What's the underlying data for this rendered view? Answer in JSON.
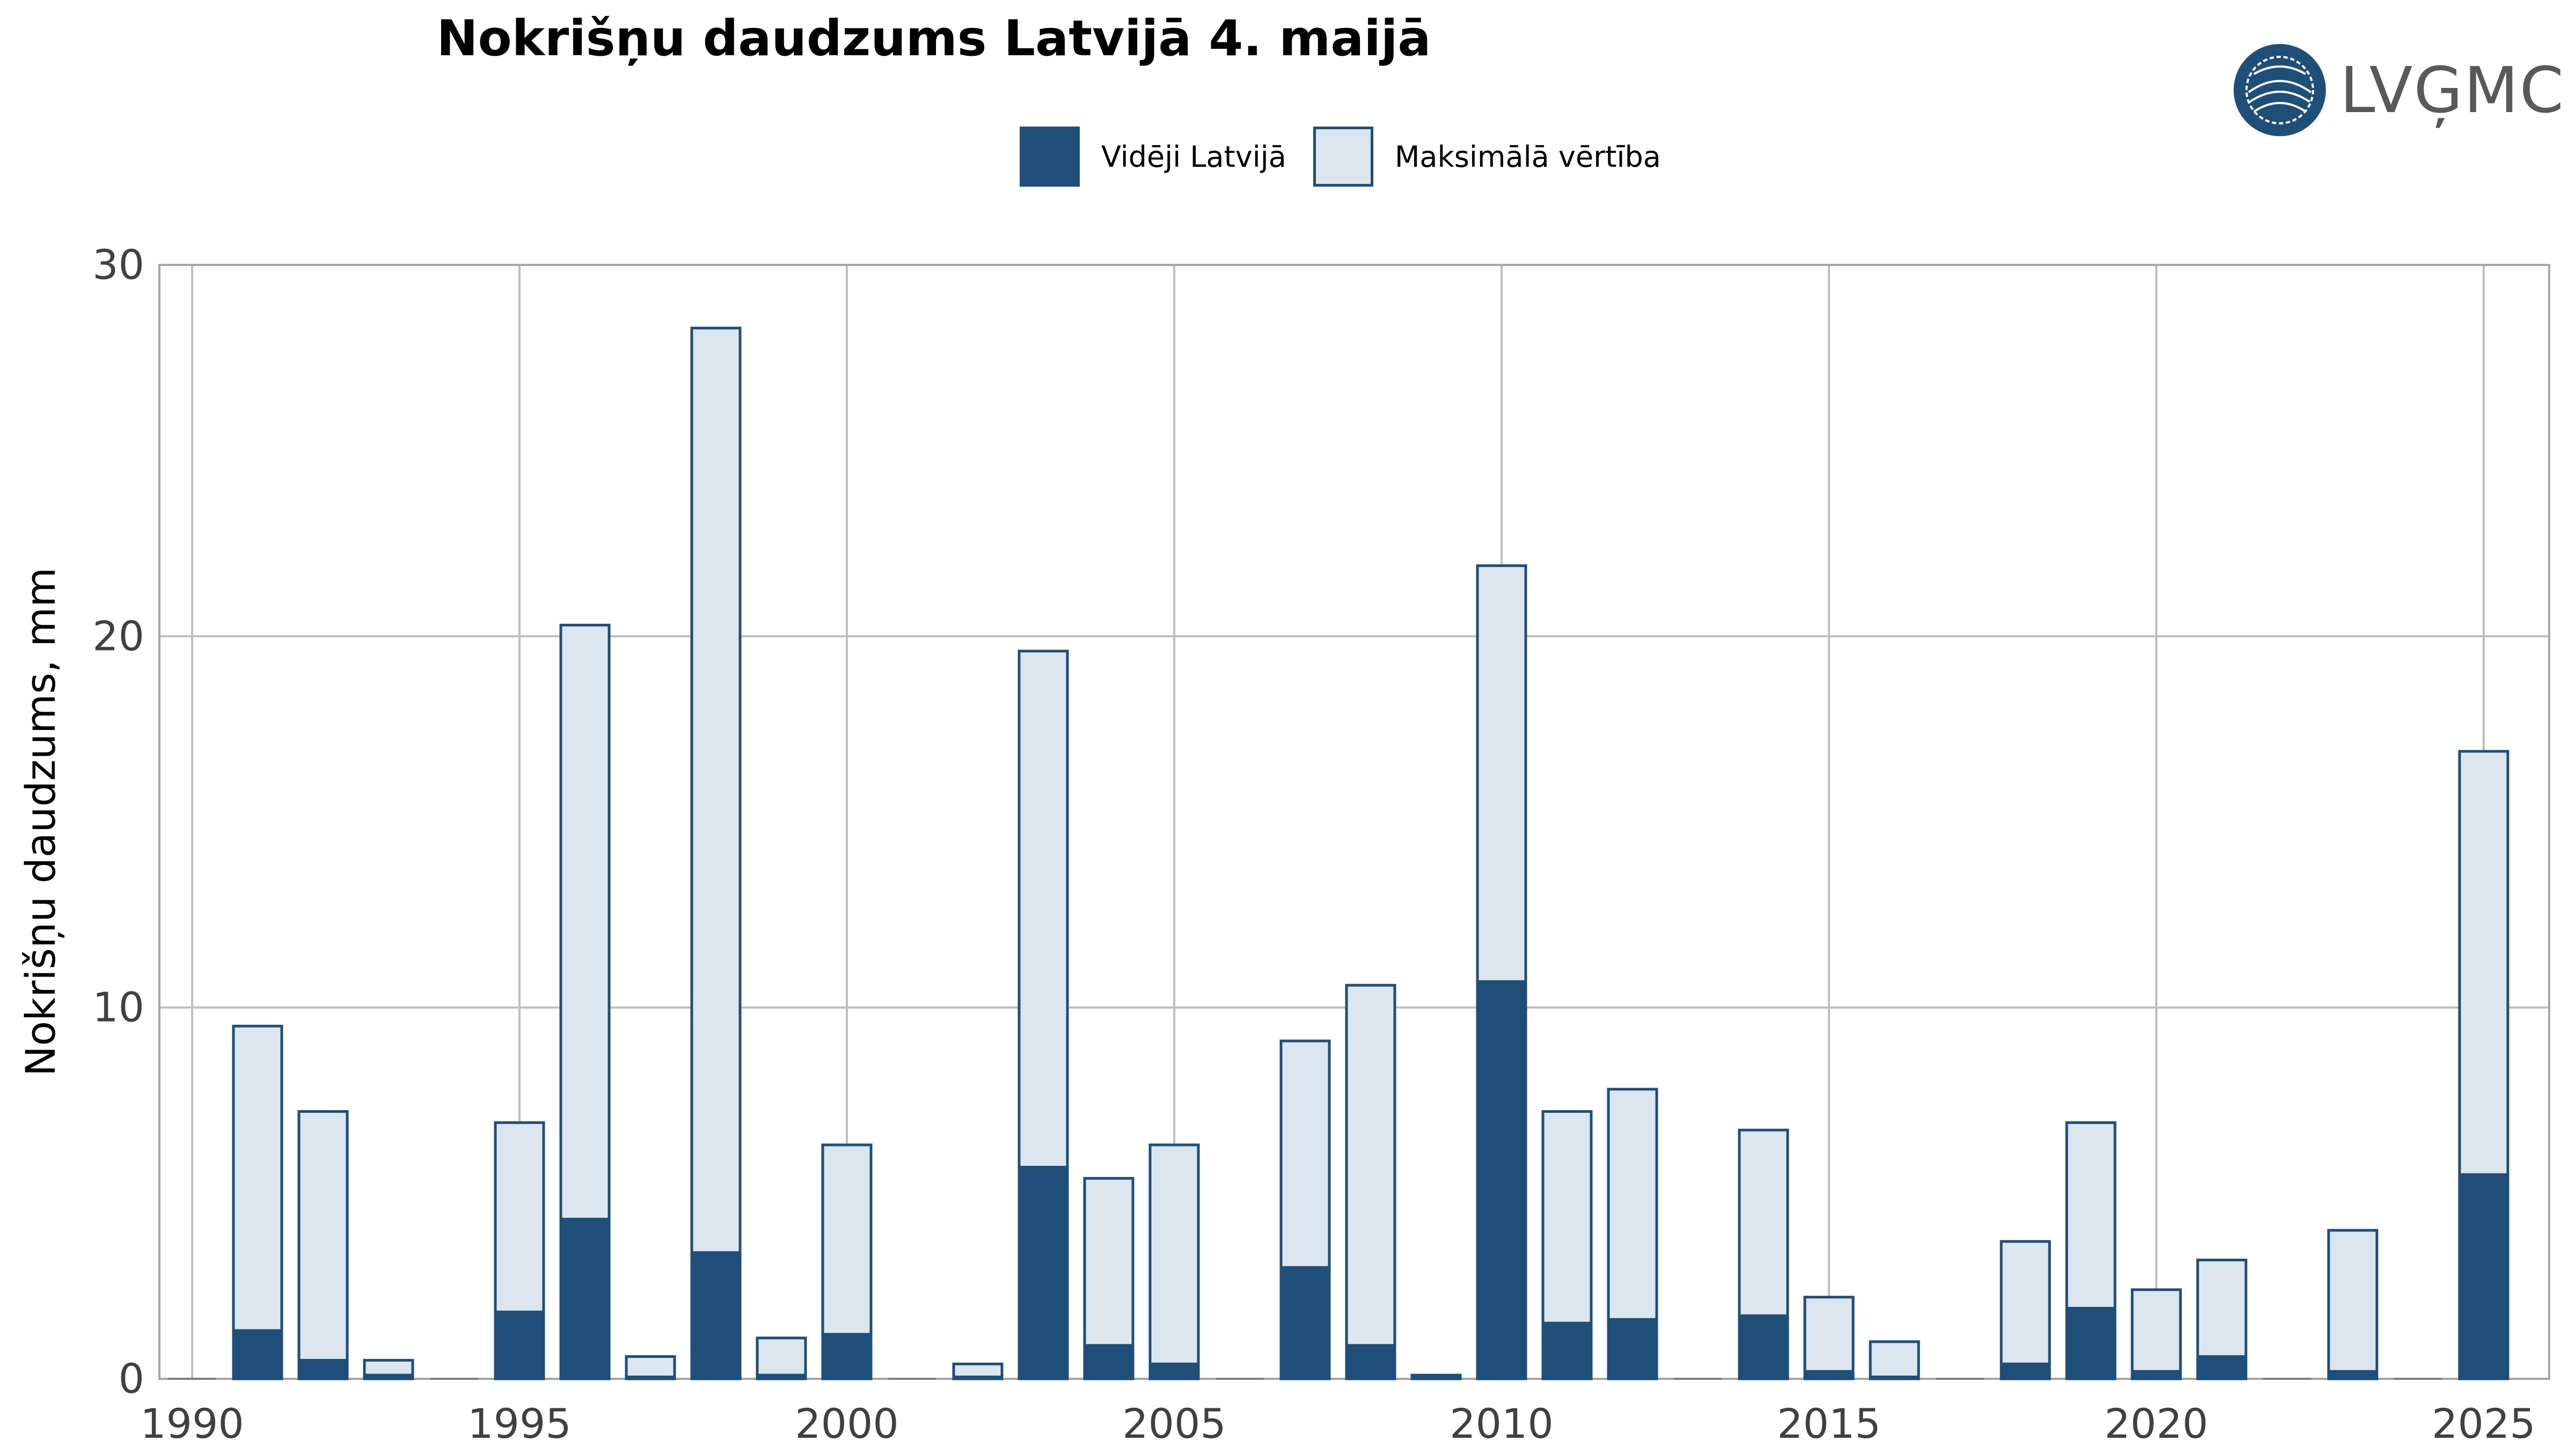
{
  "title": "Nokrišņu daudzums Latvijā 4. maijā",
  "logo": {
    "text": "LVĢMC",
    "icon": "globe-logo-icon"
  },
  "legend": [
    {
      "label": "Vidēji Latvijā",
      "color": "#1f4e79"
    },
    {
      "label": "Maksimālā vērtība",
      "color": "#dce6ee"
    }
  ],
  "chart_data": {
    "type": "bar",
    "title": "Nokrišņu daudzums Latvijā 4. maijā",
    "ylabel": "Nokrišņu daudzums, mm",
    "xlabel": "",
    "ylim": [
      0,
      30
    ],
    "xlim": [
      1989.5,
      2026
    ],
    "yticks": [
      0,
      10,
      20,
      30
    ],
    "xticks": [
      1990,
      1995,
      2000,
      2005,
      2010,
      2015,
      2020,
      2025
    ],
    "grid": true,
    "legend_position": "top",
    "x": [
      1990,
      1991,
      1992,
      1993,
      1994,
      1995,
      1996,
      1997,
      1998,
      1999,
      2000,
      2001,
      2002,
      2003,
      2004,
      2005,
      2006,
      2007,
      2008,
      2009,
      2010,
      2011,
      2012,
      2013,
      2014,
      2015,
      2016,
      2017,
      2018,
      2019,
      2020,
      2021,
      2022,
      2023,
      2024,
      2025
    ],
    "series": [
      {
        "name": "Maksimālā vērtība",
        "color": "#dce6ee",
        "values": [
          0,
          9.5,
          7.2,
          0.5,
          0,
          6.9,
          20.3,
          0.6,
          28.3,
          1.1,
          6.3,
          0,
          0.4,
          19.6,
          5.4,
          6.3,
          0,
          9.1,
          10.6,
          0.1,
          21.9,
          7.2,
          7.8,
          0,
          6.7,
          2.2,
          1.0,
          0,
          3.7,
          6.9,
          2.4,
          3.2,
          0,
          4.0,
          0,
          16.9
        ]
      },
      {
        "name": "Vidēji Latvijā",
        "color": "#1f4e79",
        "values": [
          0,
          1.3,
          0.5,
          0.1,
          0,
          1.8,
          4.3,
          0.05,
          3.4,
          0.1,
          1.2,
          0,
          0.05,
          5.7,
          0.9,
          0.4,
          0,
          3.0,
          0.9,
          0.05,
          10.7,
          1.5,
          1.6,
          0,
          1.7,
          0.2,
          0.05,
          0,
          0.4,
          1.9,
          0.2,
          0.6,
          0,
          0.2,
          0,
          5.5
        ]
      }
    ]
  }
}
